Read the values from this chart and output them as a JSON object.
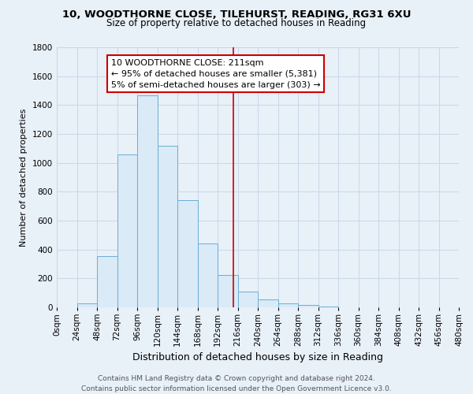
{
  "title": "10, WOODTHORNE CLOSE, TILEHURST, READING, RG31 6XU",
  "subtitle": "Size of property relative to detached houses in Reading",
  "xlabel": "Distribution of detached houses by size in Reading",
  "ylabel": "Number of detached properties",
  "footer_line1": "Contains HM Land Registry data © Crown copyright and database right 2024.",
  "footer_line2": "Contains public sector information licensed under the Open Government Licence v3.0.",
  "bar_edges": [
    0,
    24,
    48,
    72,
    96,
    120,
    144,
    168,
    192,
    216,
    240,
    264,
    288,
    312,
    336,
    360,
    384,
    408,
    432,
    456,
    480
  ],
  "bar_heights": [
    0,
    30,
    355,
    1060,
    1465,
    1120,
    740,
    440,
    225,
    110,
    55,
    25,
    15,
    5,
    0,
    0,
    0,
    0,
    0,
    0
  ],
  "bar_color": "#daeaf7",
  "bar_edge_color": "#6aaed6",
  "property_line_x": 211,
  "property_line_color": "#cc0000",
  "annotation_line1": "10 WOODTHORNE CLOSE: 211sqm",
  "annotation_line2": "← 95% of detached houses are smaller (5,381)",
  "annotation_line3": "5% of semi-detached houses are larger (303) →",
  "annotation_box_facecolor": "#ffffff",
  "annotation_box_edgecolor": "#cc0000",
  "ylim": [
    0,
    1800
  ],
  "yticks": [
    0,
    200,
    400,
    600,
    800,
    1000,
    1200,
    1400,
    1600,
    1800
  ],
  "xtick_labels": [
    "0sqm",
    "24sqm",
    "48sqm",
    "72sqm",
    "96sqm",
    "120sqm",
    "144sqm",
    "168sqm",
    "192sqm",
    "216sqm",
    "240sqm",
    "264sqm",
    "288sqm",
    "312sqm",
    "336sqm",
    "360sqm",
    "384sqm",
    "408sqm",
    "432sqm",
    "456sqm",
    "480sqm"
  ],
  "grid_color": "#c8d8e8",
  "background_color": "#e8f0f8",
  "title_fontsize": 9.5,
  "subtitle_fontsize": 8.5,
  "xlabel_fontsize": 9,
  "ylabel_fontsize": 8,
  "tick_fontsize": 7.5,
  "annotation_fontsize": 8,
  "footer_fontsize": 6.5
}
